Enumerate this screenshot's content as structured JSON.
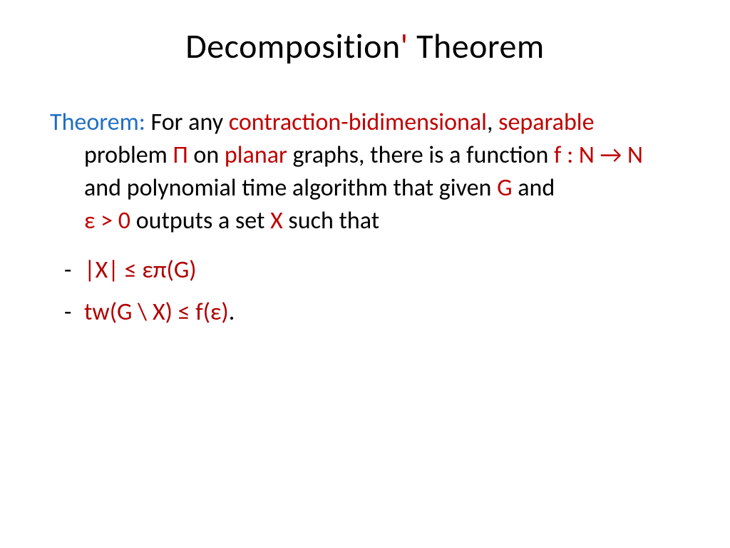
{
  "colors": {
    "background": "#ffffff",
    "text": "#000000",
    "blue": "#1f6fc4",
    "red": "#c00000",
    "darkred": "#b00000"
  },
  "typography": {
    "title_fontsize": 48,
    "body_fontsize": 34,
    "font_family": "Calibri"
  },
  "title": {
    "part1": "Decomposition",
    "apostrophe": "'",
    "part2": " Theorem"
  },
  "theorem": {
    "label": "Theorem:",
    "t1": " For any ",
    "t2": "contraction-bidimensional",
    "t3": ", ",
    "t4": "separable",
    "t5": " problem ",
    "t6": "Π",
    "t7": " on ",
    "t8": "planar",
    "t9": " graphs, there is a function ",
    "t10": "f : N ",
    "arrow": "→",
    "t11": " N",
    "t12": " and polynomial time algorithm that given ",
    "t13": "G",
    "t14": " and ",
    "t15": "ε > 0",
    "t16": " outputs a set ",
    "t17": "X",
    "t18": " such that"
  },
  "bullets": [
    {
      "dash": "-",
      "expr": "|X| ≤ επ(G)",
      "tail": ""
    },
    {
      "dash": "-",
      "expr": "tw(G \\ X) ≤ f(ε)",
      "tail": "."
    }
  ]
}
